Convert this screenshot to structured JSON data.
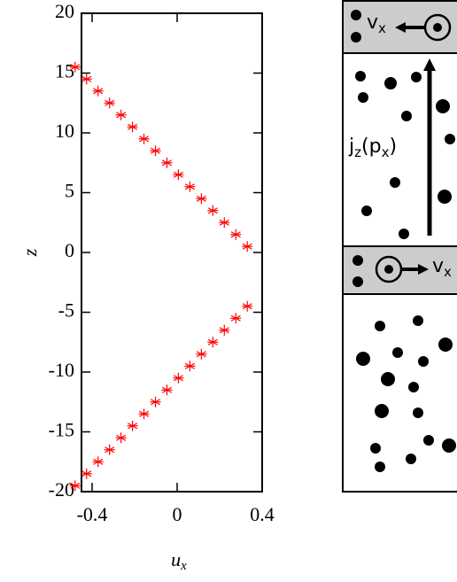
{
  "chart_data": {
    "type": "scatter",
    "xlabel": [
      "u",
      "x"
    ],
    "ylabel": "z",
    "xlim": [
      -0.45,
      0.4
    ],
    "ylim": [
      -20,
      20
    ],
    "xticks": [
      -0.4,
      0,
      0.4
    ],
    "yticks": [
      -20,
      -15,
      -10,
      -5,
      0,
      5,
      10,
      15,
      20
    ],
    "series": [
      {
        "color": "#ff0000",
        "x": [
          -0.48,
          -0.426,
          -0.372,
          -0.318,
          -0.264,
          -0.21,
          -0.156,
          -0.102,
          -0.048,
          0.006,
          0.06,
          0.114,
          0.168,
          0.222,
          0.276,
          0.33
        ],
        "values": [
          15.5,
          14.5,
          13.5,
          12.5,
          11.5,
          10.5,
          9.5,
          8.5,
          7.5,
          6.5,
          5.5,
          4.5,
          3.5,
          2.5,
          1.5,
          0.5
        ]
      },
      {
        "color": "#ff0000",
        "x": [
          -0.48,
          -0.426,
          -0.372,
          -0.318,
          -0.264,
          -0.21,
          -0.156,
          -0.102,
          -0.048,
          0.006,
          0.06,
          0.114,
          0.168,
          0.222,
          0.276,
          0.33
        ],
        "values": [
          -19.5,
          -18.5,
          -17.5,
          -16.5,
          -15.5,
          -14.5,
          -13.5,
          -12.5,
          -11.5,
          -10.5,
          -9.5,
          -8.5,
          -7.5,
          -6.5,
          -5.5,
          -4.5
        ]
      }
    ]
  },
  "diagram": {
    "top_velocity": [
      "v",
      "x"
    ],
    "mid_velocity": [
      "v",
      "x"
    ],
    "current": [
      "j",
      "z",
      "(p",
      "x",
      ")"
    ]
  }
}
